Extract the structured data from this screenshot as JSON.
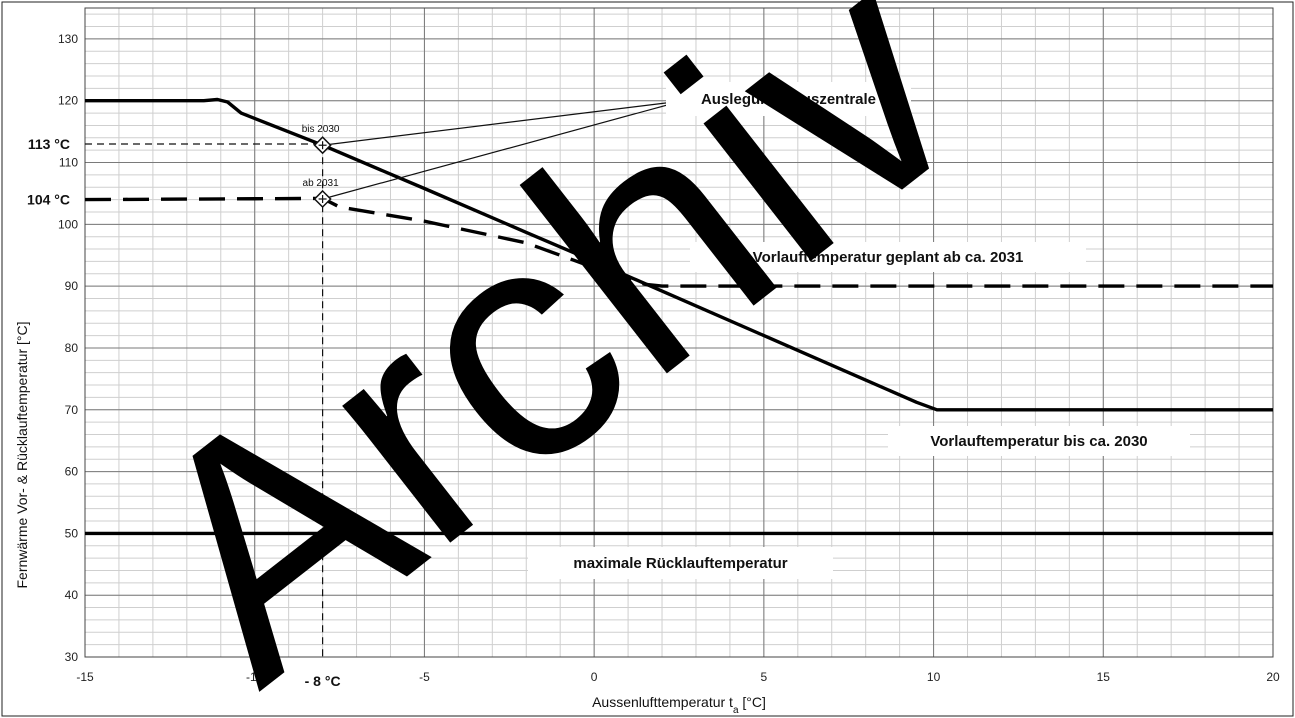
{
  "chart_data": {
    "type": "line",
    "xlabel_main": "Aussenlufttemperatur t",
    "xlabel_sub": "a",
    "xlabel_unit": " [°C]",
    "ylabel": "Fernwärme Vor- & Rücklauftemperatur [°C]",
    "xlim": [
      -15,
      20
    ],
    "ylim": [
      30,
      135
    ],
    "x_ticks": [
      -15,
      -10,
      -5,
      0,
      5,
      10,
      15,
      20
    ],
    "y_ticks": [
      30,
      40,
      50,
      60,
      70,
      80,
      90,
      100,
      110,
      120,
      130
    ],
    "grid": true,
    "series": [
      {
        "style": "solid",
        "x": [
          -15,
          -11.5,
          -11.1,
          -10.8,
          -10.4,
          -8,
          -5,
          -2,
          0,
          5,
          9.5,
          10.1,
          10.6,
          20
        ],
        "y": [
          120,
          120,
          120.2,
          119.8,
          118,
          112.8,
          105.8,
          98.7,
          94,
          82,
          71.2,
          70,
          70,
          70
        ]
      },
      {
        "style": "dashed",
        "x": [
          -15,
          -8,
          -7.5,
          -5,
          -2,
          0,
          1.5,
          2,
          20
        ],
        "y": [
          104,
          104.2,
          102.8,
          100.5,
          97,
          93,
          90.3,
          90,
          90
        ]
      },
      {
        "style": "solid",
        "x": [
          -15,
          20
        ],
        "y": [
          50,
          50
        ]
      }
    ],
    "markers": [
      {
        "x": -8,
        "y": 112.8,
        "label": "bis 2030"
      },
      {
        "x": -8,
        "y": 104.1,
        "label": "ab 2031"
      }
    ],
    "reference": {
      "x_value_label": "- 8 °C",
      "y_labels": [
        {
          "y": 113,
          "label": "113 °C"
        },
        {
          "y": 104,
          "label": "104 °C"
        }
      ]
    },
    "annotations": {
      "design": "Auslegung Hauszentrale",
      "dashed_series": "Vorlauftemperatur geplant ab ca. 2031",
      "solid_series": "Vorlauftemperatur bis ca. 2030",
      "return": "maximale Rücklauftemperatur"
    },
    "watermark": "Archiv"
  }
}
